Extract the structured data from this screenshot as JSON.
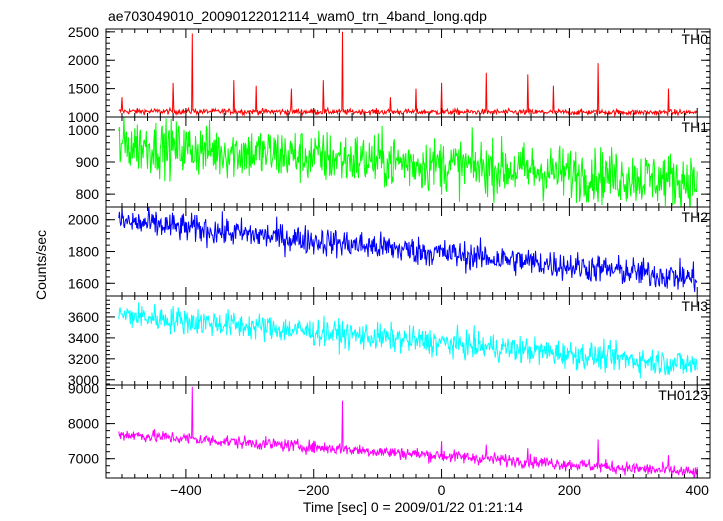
{
  "chart_data": {
    "type": "line",
    "title": "ae703049010_20090122012114_wam0_trn_4band_long.qdp",
    "xlabel": "Time [sec] 0 = 2009/01/22 01:21:14",
    "ylabel": "Counts/sec",
    "xlim": [
      -525,
      420
    ],
    "xticks": [
      -400,
      -200,
      0,
      200,
      400
    ],
    "grid": false,
    "panels": [
      {
        "name": "TH0",
        "color": "#ff0000",
        "ylim": [
          1000,
          2550
        ],
        "yticks": [
          1000,
          1500,
          2000,
          2500
        ],
        "trend": {
          "x": [
            -505,
            400
          ],
          "y": [
            1100,
            1080
          ]
        },
        "noise": 25,
        "spikes": [
          {
            "x": -500,
            "y": 1350
          },
          {
            "x": -420,
            "y": 1600
          },
          {
            "x": -390,
            "y": 2470
          },
          {
            "x": -325,
            "y": 1650
          },
          {
            "x": -290,
            "y": 1550
          },
          {
            "x": -235,
            "y": 1500
          },
          {
            "x": -185,
            "y": 1650
          },
          {
            "x": -155,
            "y": 2500
          },
          {
            "x": -80,
            "y": 1350
          },
          {
            "x": -40,
            "y": 1500
          },
          {
            "x": 0,
            "y": 1600
          },
          {
            "x": 70,
            "y": 1780
          },
          {
            "x": 135,
            "y": 1750
          },
          {
            "x": 175,
            "y": 1550
          },
          {
            "x": 245,
            "y": 1950
          },
          {
            "x": 355,
            "y": 1500
          }
        ]
      },
      {
        "name": "TH1",
        "color": "#00ff00",
        "ylim": [
          760,
          1040
        ],
        "yticks": [
          800,
          900,
          1000
        ],
        "trend": {
          "x": [
            -505,
            400
          ],
          "y": [
            955,
            840
          ]
        },
        "noise": 42,
        "spikes": []
      },
      {
        "name": "TH2",
        "color": "#0000ff",
        "ylim": [
          1520,
          2080
        ],
        "yticks": [
          1600,
          1800,
          2000
        ],
        "trend": {
          "x": [
            -505,
            400
          ],
          "y": [
            1990,
            1630
          ]
        },
        "noise": 45,
        "spikes": []
      },
      {
        "name": "TH3",
        "color": "#00ffff",
        "ylim": [
          2950,
          3800
        ],
        "yticks": [
          3000,
          3200,
          3400,
          3600
        ],
        "trend": {
          "x": [
            -505,
            400
          ],
          "y": [
            3620,
            3140
          ]
        },
        "noise": 65,
        "spikes": []
      },
      {
        "name": "TH0123",
        "color": "#ff00ff",
        "ylim": [
          6450,
          9100
        ],
        "yticks": [
          7000,
          8000,
          9000
        ],
        "trend": {
          "x": [
            -505,
            400
          ],
          "y": [
            7700,
            6600
          ]
        },
        "noise": 90,
        "spikes": [
          {
            "x": -390,
            "y": 9050
          },
          {
            "x": -155,
            "y": 8650
          },
          {
            "x": 0,
            "y": 7500
          },
          {
            "x": 70,
            "y": 7400
          },
          {
            "x": 135,
            "y": 7300
          },
          {
            "x": 245,
            "y": 7550
          },
          {
            "x": 355,
            "y": 7100
          }
        ]
      }
    ]
  }
}
